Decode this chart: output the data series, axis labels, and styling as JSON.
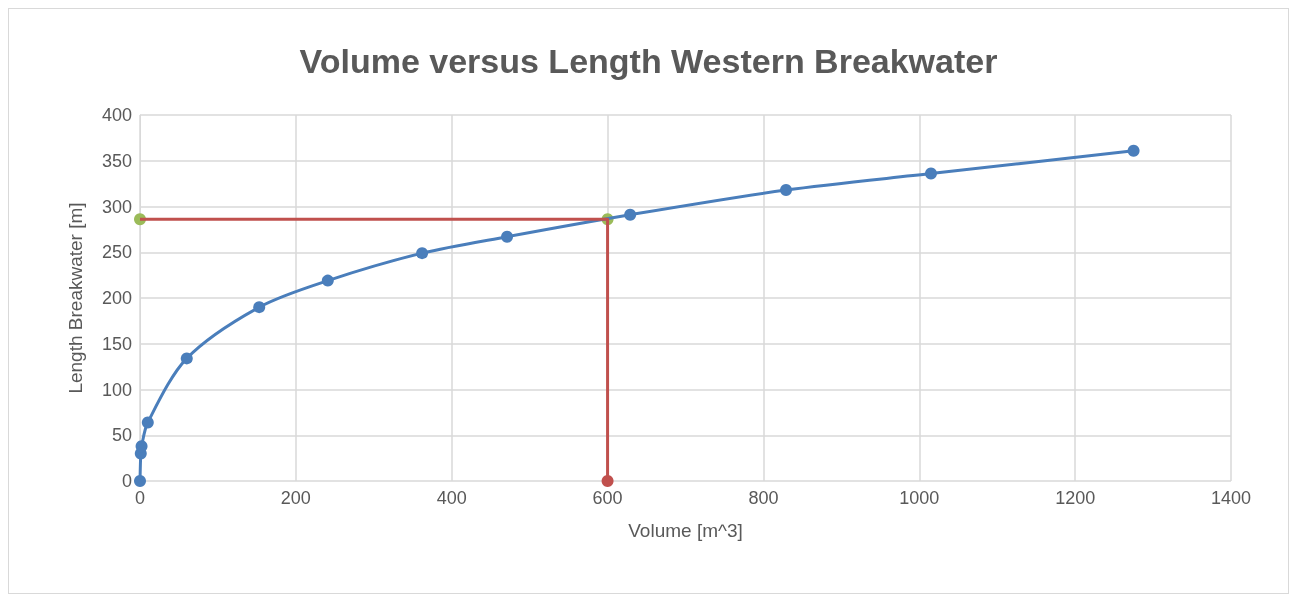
{
  "chart_data": {
    "type": "line",
    "title": "Volume versus Length Western Breakwater",
    "xlabel": "Volume [m^3]",
    "ylabel": "Length Breakwater [m]",
    "xlim": [
      0,
      1400
    ],
    "xticks": [
      0,
      200,
      400,
      600,
      800,
      1000,
      1200,
      1400
    ],
    "ylim": [
      0,
      400
    ],
    "yticks": [
      0,
      50,
      100,
      150,
      200,
      250,
      300,
      350,
      400
    ],
    "grid": true,
    "series": [
      {
        "type": "line",
        "marker": "circle",
        "color": "#4a7ebb",
        "x": [
          0,
          1,
          2,
          10,
          60,
          153,
          241,
          362,
          471,
          629,
          829,
          1015,
          1275
        ],
        "values": [
          0,
          30,
          38,
          64,
          134,
          190,
          219,
          249,
          267,
          291,
          318,
          336,
          361
        ]
      },
      {
        "type": "line",
        "marker": "none",
        "color": "#c0504d",
        "x": [
          0,
          600,
          600
        ],
        "values": [
          286,
          286,
          0
        ]
      },
      {
        "type": "scatter",
        "marker": "circle",
        "color": "#c0504d",
        "x": [
          600
        ],
        "values": [
          0
        ]
      },
      {
        "type": "scatter",
        "marker": "circle",
        "color": "#9bbb59",
        "x": [
          0,
          600
        ],
        "values": [
          286,
          286
        ]
      }
    ]
  }
}
